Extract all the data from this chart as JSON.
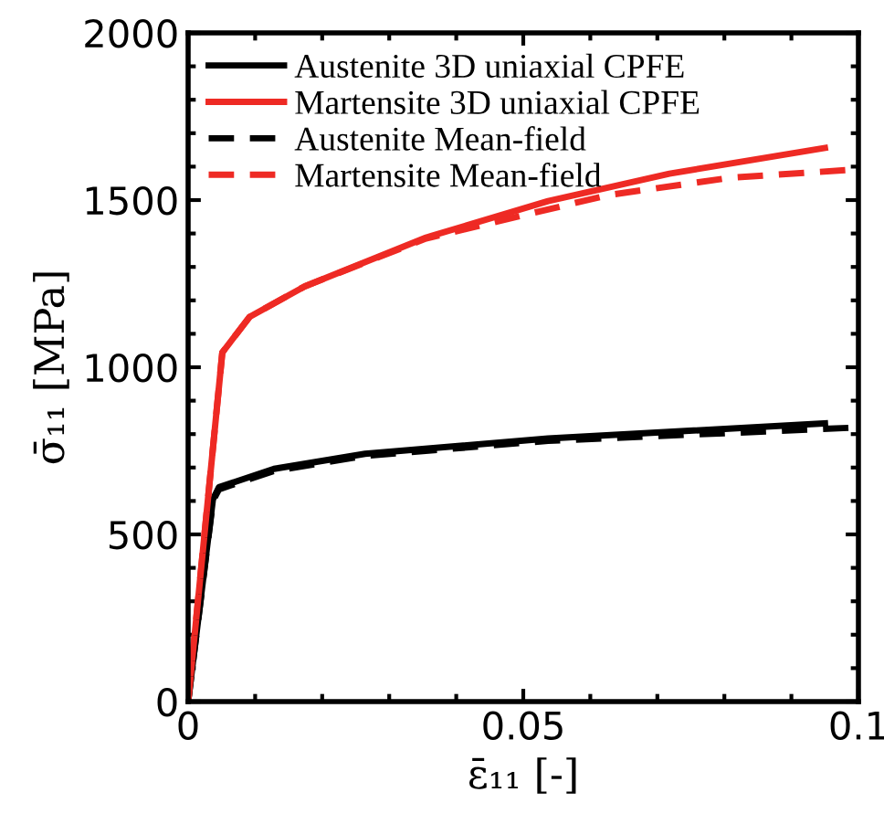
{
  "chart_data": {
    "type": "line",
    "xlabel": "ε̄₁₁ [-]",
    "ylabel": "σ̄₁₁ [MPa]",
    "xlim": [
      0,
      0.1
    ],
    "ylim": [
      0,
      2000
    ],
    "xticks": [
      0,
      0.05,
      0.1
    ],
    "yticks": [
      0,
      500,
      1000,
      1500,
      2000
    ],
    "grid": false,
    "legend": "top left",
    "marker": "none",
    "series": [
      {
        "name": "Austenite 3D uniaxial CPFE",
        "color": "#000000",
        "line_style": "solid",
        "x": [
          0,
          0.0037,
          0.0046,
          0.0128,
          0.0264,
          0.0537,
          0.095
        ],
        "values": [
          0,
          605,
          641,
          696,
          741,
          787,
          832
        ]
      },
      {
        "name": "Martensite 3D uniaxial CPFE",
        "color": "#ee2a24",
        "line_style": "solid",
        "x": [
          0,
          0.0051,
          0.0092,
          0.0174,
          0.0355,
          0.0537,
          0.0718,
          0.095
        ],
        "values": [
          0,
          1044,
          1151,
          1242,
          1388,
          1497,
          1579,
          1656
        ]
      },
      {
        "name": "Austenite Mean-field",
        "color": "#000000",
        "line_style": "dashed",
        "x": [
          0,
          0.0037,
          0.0046,
          0.0128,
          0.0264,
          0.0537,
          0.1
        ],
        "values": [
          0,
          600,
          635,
          690,
          735,
          780,
          820
        ]
      },
      {
        "name": "Martensite Mean-field",
        "color": "#ee2a24",
        "line_style": "dashed",
        "x": [
          0,
          0.0051,
          0.0092,
          0.0174,
          0.0355,
          0.0627,
          0.081,
          0.1
        ],
        "values": [
          0,
          1044,
          1151,
          1242,
          1385,
          1515,
          1567,
          1592
        ]
      }
    ]
  }
}
